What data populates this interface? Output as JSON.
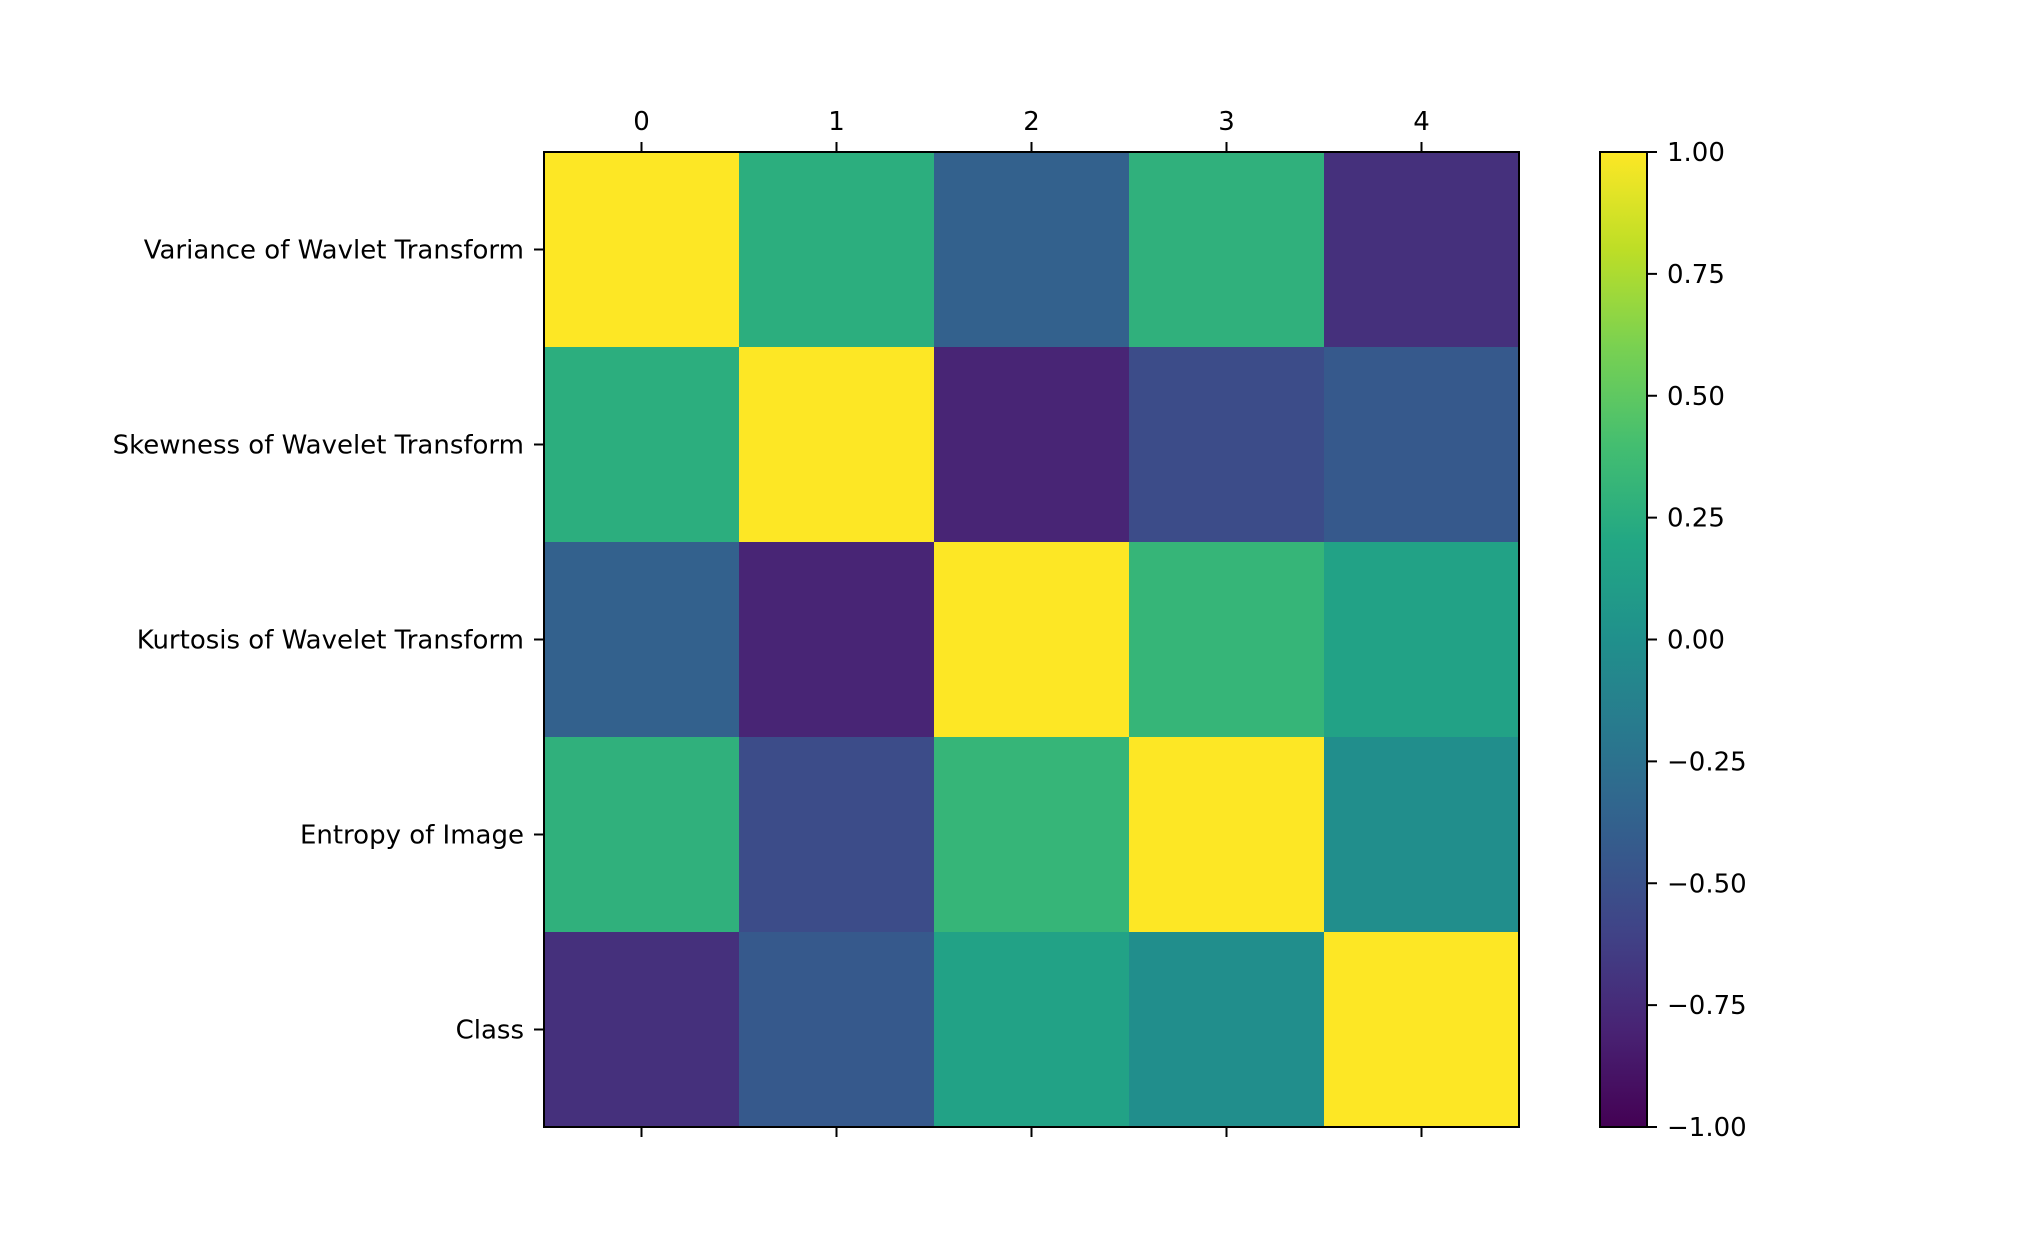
{
  "chart_data": {
    "type": "heatmap",
    "title": "",
    "x_tick_labels": [
      "0",
      "1",
      "2",
      "3",
      "4"
    ],
    "y_tick_labels": [
      "Variance of Wavlet Transform",
      "Skewness of Wavelet Transform",
      "Kurtosis of Wavelet Transform",
      "Entropy of Image",
      "Class"
    ],
    "matrix": [
      [
        1.0,
        0.26,
        -0.38,
        0.28,
        -0.72
      ],
      [
        0.26,
        1.0,
        -0.79,
        -0.53,
        -0.44
      ],
      [
        -0.38,
        -0.79,
        1.0,
        0.32,
        0.16
      ],
      [
        0.28,
        -0.53,
        0.32,
        1.0,
        -0.02
      ],
      [
        -0.72,
        -0.44,
        0.16,
        -0.02,
        1.0
      ]
    ],
    "colormap": "viridis",
    "vmin": -1.0,
    "vmax": 1.0,
    "colorbar_ticks": [
      "1.00",
      "0.75",
      "0.50",
      "0.25",
      "0.00",
      "−0.25",
      "−0.50",
      "−0.75",
      "−1.00"
    ],
    "colorbar_tick_values": [
      1.0,
      0.75,
      0.5,
      0.25,
      0.0,
      -0.25,
      -0.5,
      -0.75,
      -1.0
    ]
  }
}
